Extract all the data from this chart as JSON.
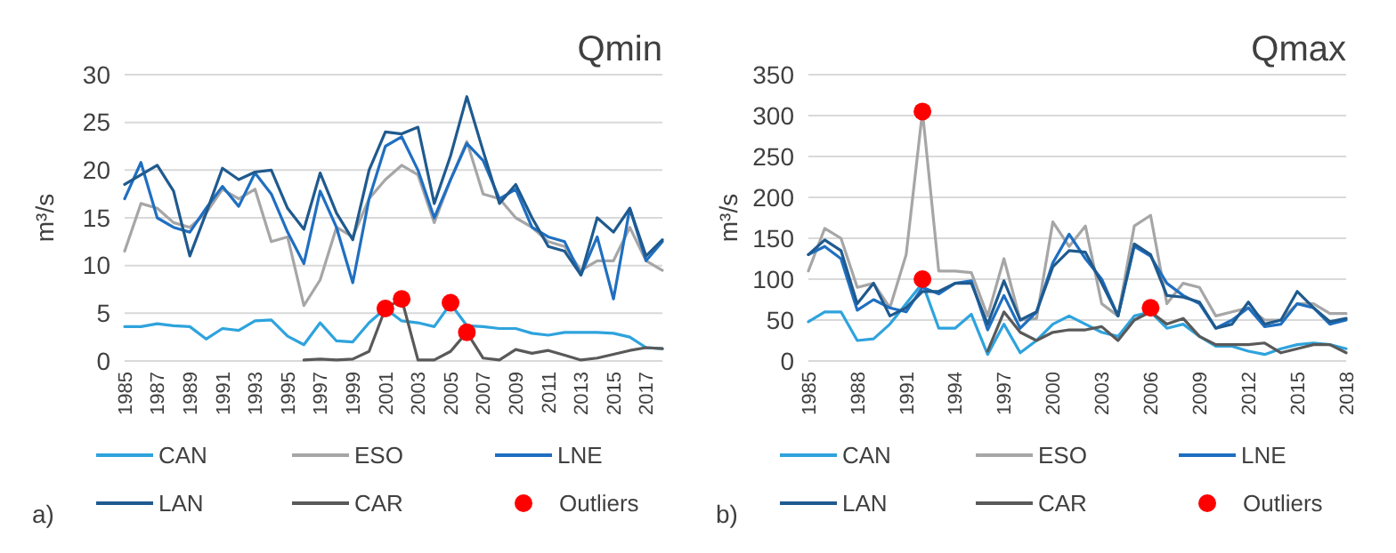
{
  "chart_data": [
    {
      "type": "line",
      "title": "Qmin",
      "ylabel": "m³/s",
      "annotations": [
        "a)"
      ],
      "x": [
        1985,
        1986,
        1987,
        1988,
        1989,
        1990,
        1991,
        1992,
        1993,
        1994,
        1995,
        1996,
        1997,
        1998,
        1999,
        2000,
        2001,
        2002,
        2003,
        2004,
        2005,
        2006,
        2007,
        2008,
        2009,
        2010,
        2011,
        2012,
        2013,
        2014,
        2015,
        2016,
        2017,
        2018
      ],
      "xlim": [
        1985,
        2018
      ],
      "xticks": [
        1985,
        1987,
        1989,
        1991,
        1993,
        1995,
        1997,
        1999,
        2001,
        2003,
        2005,
        2007,
        2009,
        2011,
        2013,
        2015,
        2017
      ],
      "ylim": [
        0,
        30
      ],
      "yticks": [
        0,
        5,
        10,
        15,
        20,
        25,
        30
      ],
      "grid": "y",
      "legend": "bottom",
      "line_style": "solid",
      "series": [
        {
          "name": "CAN",
          "color": "#2ea3dd",
          "values": [
            3.6,
            3.6,
            3.9,
            3.7,
            3.6,
            2.3,
            3.4,
            3.2,
            4.2,
            4.3,
            2.6,
            1.7,
            4.0,
            2.1,
            2.0,
            4.0,
            5.5,
            4.2,
            4.0,
            3.6,
            6.0,
            3.7,
            3.6,
            3.4,
            3.4,
            2.9,
            2.7,
            3.0,
            3.0,
            3.0,
            2.9,
            2.5,
            1.4,
            1.3
          ]
        },
        {
          "name": "ESO",
          "color": "#a6a6a6",
          "values": [
            11.5,
            16.5,
            16.0,
            14.5,
            14.0,
            15.5,
            18.0,
            17.0,
            18.0,
            12.5,
            13.0,
            5.8,
            8.5,
            14.0,
            13.0,
            17.0,
            19.0,
            20.5,
            19.5,
            14.5,
            19.0,
            23.0,
            17.5,
            17.0,
            15.0,
            14.0,
            12.5,
            12.0,
            9.5,
            10.5,
            10.5,
            14.0,
            10.5,
            9.5
          ]
        },
        {
          "name": "LNE",
          "color": "#1f6fc1",
          "values": [
            17.0,
            20.8,
            15.0,
            14.0,
            13.5,
            16.0,
            18.3,
            16.2,
            19.7,
            17.5,
            13.5,
            10.2,
            17.8,
            14.0,
            8.2,
            17.0,
            22.5,
            23.5,
            20.0,
            15.0,
            19.0,
            22.8,
            21.0,
            17.0,
            18.0,
            14.0,
            13.0,
            12.5,
            9.0,
            13.0,
            6.5,
            16.0,
            10.5,
            12.5
          ]
        },
        {
          "name": "LAN",
          "color": "#1f5a8e",
          "values": [
            18.5,
            19.5,
            20.5,
            17.8,
            11.0,
            15.5,
            20.2,
            19.0,
            19.8,
            20.0,
            16.0,
            13.8,
            19.7,
            15.5,
            12.7,
            20.0,
            24.0,
            23.8,
            24.5,
            16.5,
            21.5,
            27.7,
            22.0,
            16.5,
            18.5,
            15.0,
            12.0,
            11.5,
            9.0,
            15.0,
            13.5,
            16.0,
            11.0,
            12.7
          ]
        },
        {
          "name": "CAR",
          "color": "#595959",
          "values": [
            null,
            null,
            null,
            null,
            null,
            null,
            null,
            null,
            null,
            null,
            null,
            0.1,
            0.2,
            0.1,
            0.2,
            1.0,
            5.5,
            6.5,
            0.1,
            0.1,
            1.0,
            3.0,
            0.3,
            0.1,
            1.2,
            0.8,
            1.1,
            0.6,
            0.1,
            0.3,
            0.7,
            1.1,
            1.4,
            1.3
          ]
        },
        {
          "name": "Outliers",
          "type": "scatter",
          "marker": "circle",
          "color": "#ff0000",
          "x": [
            2001,
            2002,
            2005,
            2006
          ],
          "values": [
            5.5,
            6.5,
            6.1,
            3.0
          ]
        }
      ]
    },
    {
      "type": "line",
      "title": "Qmax",
      "ylabel": "m³/s",
      "annotations": [
        "b)"
      ],
      "x": [
        1985,
        1986,
        1987,
        1988,
        1989,
        1990,
        1991,
        1992,
        1993,
        1994,
        1995,
        1996,
        1997,
        1998,
        1999,
        2000,
        2001,
        2002,
        2003,
        2004,
        2005,
        2006,
        2007,
        2008,
        2009,
        2010,
        2011,
        2012,
        2013,
        2014,
        2015,
        2016,
        2017,
        2018
      ],
      "xlim": [
        1985,
        2018
      ],
      "xticks": [
        1985,
        1988,
        1991,
        1994,
        1997,
        2000,
        2003,
        2006,
        2009,
        2012,
        2015,
        2018
      ],
      "ylim": [
        0,
        350
      ],
      "yticks": [
        0,
        50,
        100,
        150,
        200,
        250,
        300,
        350
      ],
      "grid": "y",
      "legend": "bottom",
      "line_style": "solid",
      "series": [
        {
          "name": "CAN",
          "color": "#2ea3dd",
          "values": [
            48,
            60,
            60,
            25,
            27,
            45,
            70,
            95,
            40,
            40,
            57,
            8,
            45,
            10,
            25,
            45,
            55,
            45,
            35,
            30,
            55,
            60,
            40,
            45,
            30,
            18,
            18,
            12,
            8,
            15,
            20,
            22,
            20,
            15
          ]
        },
        {
          "name": "ESO",
          "color": "#a6a6a6",
          "values": [
            110,
            162,
            150,
            90,
            95,
            65,
            130,
            305,
            110,
            110,
            108,
            55,
            125,
            50,
            52,
            170,
            140,
            165,
            70,
            55,
            165,
            178,
            70,
            95,
            90,
            55,
            60,
            65,
            50,
            50,
            70,
            70,
            58,
            58
          ]
        },
        {
          "name": "LNE",
          "color": "#1f6fc1",
          "values": [
            130,
            140,
            125,
            62,
            75,
            65,
            60,
            90,
            82,
            95,
            98,
            38,
            80,
            40,
            60,
            120,
            155,
            125,
            100,
            55,
            140,
            128,
            95,
            80,
            70,
            40,
            50,
            65,
            42,
            45,
            70,
            65,
            45,
            50
          ]
        },
        {
          "name": "LAN",
          "color": "#1f5a8e",
          "values": [
            130,
            148,
            135,
            70,
            95,
            55,
            65,
            85,
            85,
            95,
            95,
            45,
            98,
            50,
            60,
            115,
            135,
            133,
            95,
            55,
            143,
            130,
            80,
            78,
            72,
            40,
            45,
            72,
            45,
            50,
            85,
            65,
            48,
            52
          ]
        },
        {
          "name": "CAR",
          "color": "#595959",
          "values": [
            null,
            null,
            null,
            null,
            null,
            null,
            null,
            null,
            null,
            null,
            null,
            12,
            60,
            35,
            25,
            35,
            38,
            38,
            42,
            25,
            50,
            60,
            45,
            52,
            30,
            20,
            20,
            20,
            22,
            10,
            15,
            20,
            20,
            10
          ]
        },
        {
          "name": "Outliers",
          "type": "scatter",
          "marker": "circle",
          "color": "#ff0000",
          "x": [
            1992,
            1992,
            2006
          ],
          "values": [
            305,
            100,
            65
          ]
        }
      ]
    }
  ]
}
